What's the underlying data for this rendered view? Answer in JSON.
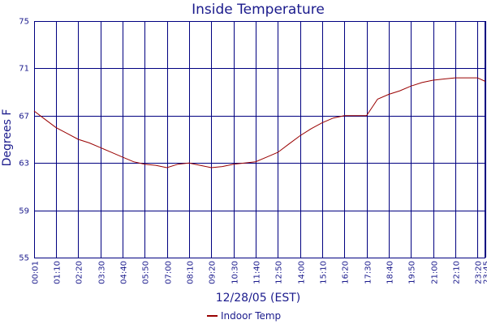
{
  "chart_data": {
    "type": "line",
    "title": "Inside Temperature",
    "xlabel": "12/28/05 (EST)",
    "ylabel": "Degrees F",
    "ylim": [
      55,
      75
    ],
    "xlim": [
      "00:01",
      "23:45"
    ],
    "grid": true,
    "legend_position": "bottom-center",
    "x_ticks": [
      "00:01",
      "01:10",
      "02:20",
      "03:30",
      "04:40",
      "05:50",
      "07:00",
      "08:10",
      "09:20",
      "10:30",
      "11:40",
      "12:50",
      "14:00",
      "15:10",
      "16:20",
      "17:30",
      "18:40",
      "19:50",
      "21:00",
      "22:10",
      "23:20",
      "23:45"
    ],
    "y_ticks": [
      55,
      59,
      63,
      67,
      71,
      75
    ],
    "colors": {
      "axis_text": "#1a1a8c",
      "grid": "#000080",
      "series": "#990000"
    },
    "series": [
      {
        "name": "Indoor Temp",
        "x": [
          "00:01",
          "00:30",
          "01:10",
          "01:45",
          "02:20",
          "02:55",
          "03:30",
          "04:05",
          "04:40",
          "05:15",
          "05:50",
          "06:25",
          "07:00",
          "07:35",
          "08:10",
          "08:45",
          "09:20",
          "09:55",
          "10:30",
          "11:05",
          "11:40",
          "12:15",
          "12:50",
          "13:25",
          "14:00",
          "14:35",
          "15:10",
          "15:45",
          "16:20",
          "16:55",
          "17:30",
          "17:50",
          "18:05",
          "18:40",
          "19:15",
          "19:50",
          "20:25",
          "21:00",
          "21:35",
          "22:10",
          "22:45",
          "23:20",
          "23:45"
        ],
        "values": [
          67.4,
          66.8,
          66.0,
          65.5,
          65.0,
          64.7,
          64.3,
          63.9,
          63.5,
          63.1,
          62.9,
          62.8,
          62.6,
          62.9,
          63.0,
          62.8,
          62.6,
          62.7,
          62.9,
          63.0,
          63.1,
          63.5,
          63.9,
          64.6,
          65.3,
          65.9,
          66.4,
          66.8,
          67.0,
          67.0,
          67.0,
          67.8,
          68.4,
          68.8,
          69.1,
          69.5,
          69.8,
          70.0,
          70.1,
          70.2,
          70.2,
          70.2,
          69.9
        ]
      }
    ]
  }
}
